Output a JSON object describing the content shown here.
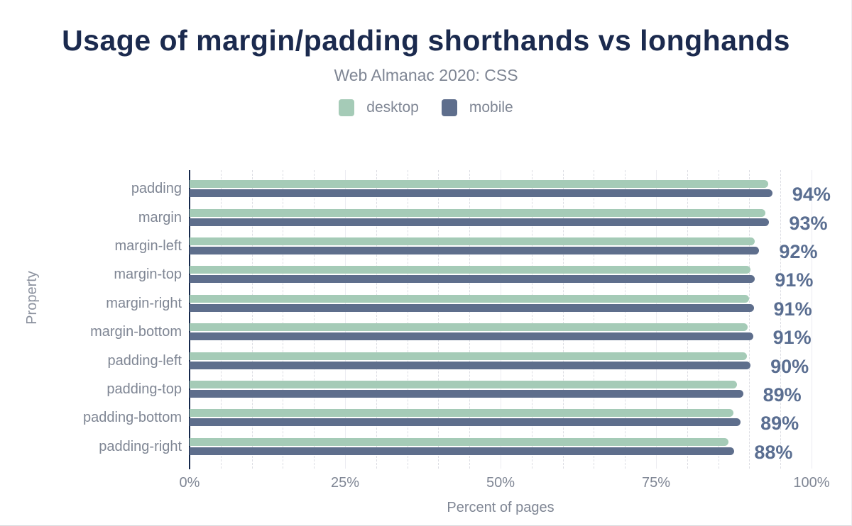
{
  "header": {
    "title": "Usage of margin/padding shorthands vs longhands",
    "subtitle": "Web Almanac 2020: CSS"
  },
  "legend": [
    {
      "label": "desktop",
      "color": "#a5cbb7"
    },
    {
      "label": "mobile",
      "color": "#5e6e8c"
    }
  ],
  "chart_data": {
    "type": "bar",
    "orientation": "horizontal",
    "title": "Usage of margin/padding shorthands vs longhands",
    "subtitle": "Web Almanac 2020: CSS",
    "xlabel": "Percent of pages",
    "ylabel": "Property",
    "xlim": [
      0,
      100
    ],
    "xticks": [
      "0%",
      "25%",
      "50%",
      "75%",
      "100%"
    ],
    "xtick_values": [
      0,
      25,
      50,
      75,
      100
    ],
    "grid": "vertical, minor dashed every 5%, major every 25%",
    "legend_position": "top center",
    "categories": [
      "padding",
      "margin",
      "margin-left",
      "margin-top",
      "margin-right",
      "margin-bottom",
      "padding-left",
      "padding-top",
      "padding-bottom",
      "padding-right"
    ],
    "series": [
      {
        "name": "desktop",
        "color": "#a5cbb7",
        "values": [
          93.0,
          92.6,
          90.9,
          90.2,
          89.9,
          89.7,
          89.6,
          88.0,
          87.4,
          86.6
        ]
      },
      {
        "name": "mobile",
        "color": "#5e6e8c",
        "values": [
          93.7,
          93.2,
          91.6,
          90.9,
          90.7,
          90.6,
          90.2,
          89.0,
          88.6,
          87.6
        ]
      }
    ],
    "value_labels": [
      "94%",
      "93%",
      "92%",
      "91%",
      "91%",
      "91%",
      "90%",
      "89%",
      "89%",
      "88%"
    ]
  },
  "colors": {
    "title": "#1b2a4e",
    "muted_text": "#7f8694",
    "value_label": "#5a6e91",
    "axis_line": "#16294c",
    "gridline_minor": "#dcdde3",
    "gridline_major": "#ececf1",
    "background": "#ffffff"
  }
}
